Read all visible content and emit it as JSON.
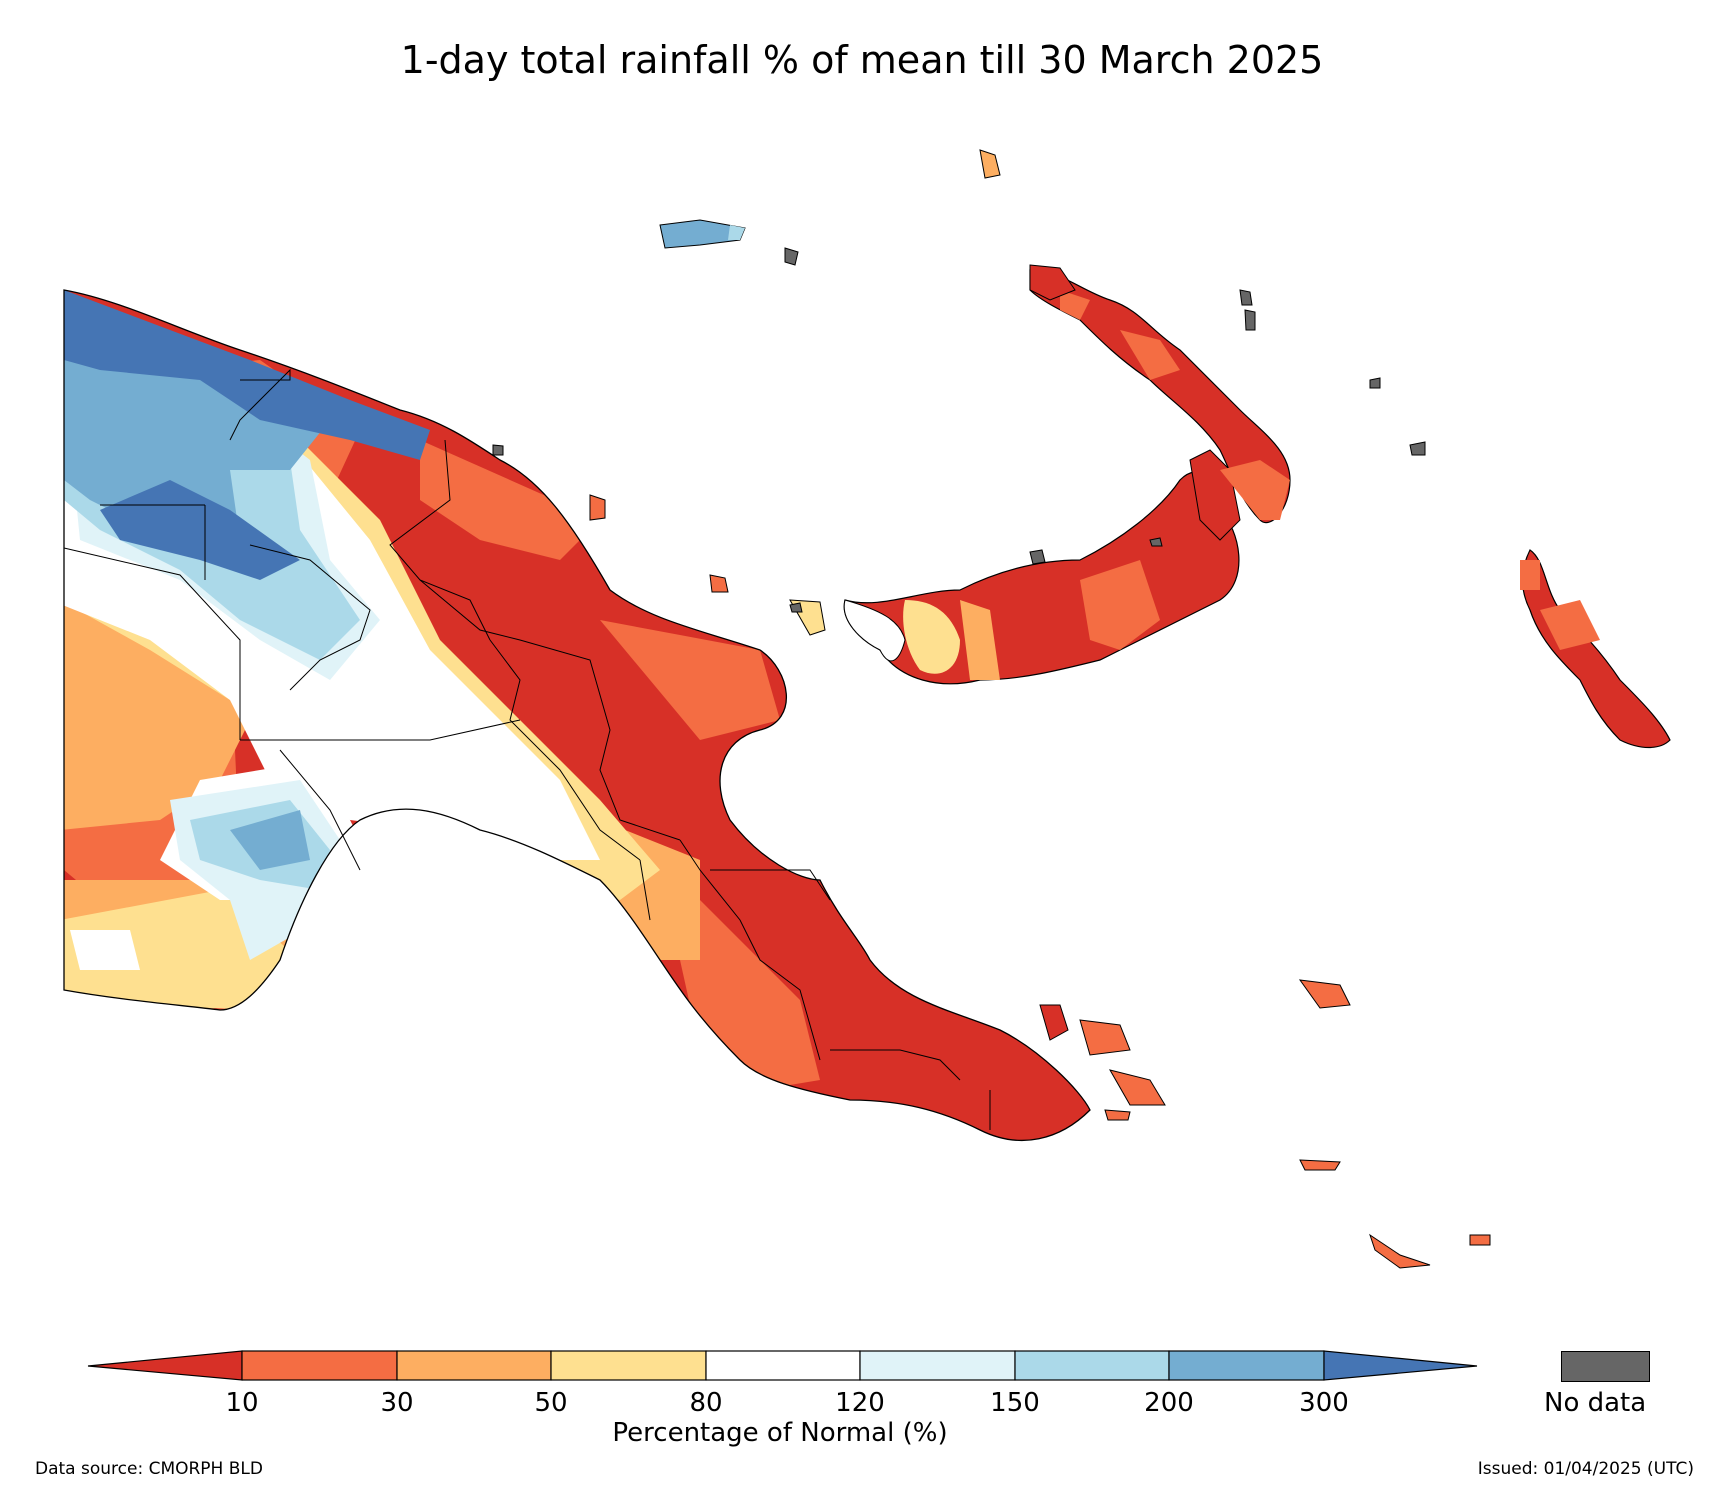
{
  "title": "1-day total rainfall % of mean till 30 March 2025",
  "colors": {
    "lt10": "#d73027",
    "c10_30": "#f46d43",
    "c30_50": "#fdae61",
    "c50_80": "#fee090",
    "c80_120": "#ffffff",
    "c120_150": "#e0f3f8",
    "c150_200": "#abd9e9",
    "c200_300": "#74add1",
    "gt300": "#4575b4",
    "nodata": "#666666"
  },
  "colorbar": {
    "ticks": [
      "10",
      "30",
      "50",
      "80",
      "120",
      "150",
      "200",
      "300"
    ],
    "label": "Percentage of Normal (%)"
  },
  "no_data_label": "No data",
  "footer": {
    "source": "Data source: CMORPH BLD",
    "issued": "Issued: 01/04/2025 (UTC)"
  }
}
